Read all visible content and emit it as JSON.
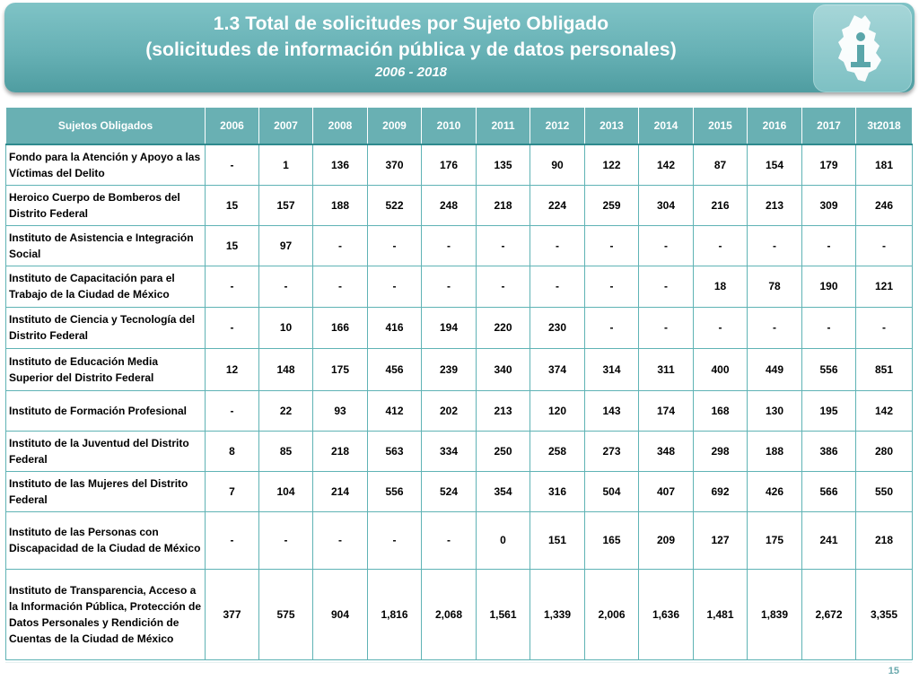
{
  "header": {
    "title_line1": "1.3 Total de solicitudes por Sujeto Obligado",
    "title_line2": "(solicitudes de información pública y de datos personales)",
    "years": "2006 - 2018"
  },
  "logo": {
    "icon": "cdmx-map-info-icon"
  },
  "table": {
    "col_headers": [
      "Sujetos Obligados",
      "2006",
      "2007",
      "2008",
      "2009",
      "2010",
      "2011",
      "2012",
      "2013",
      "2014",
      "2015",
      "2016",
      "2017",
      "3t2018"
    ],
    "rows": [
      {
        "name": "Fondo para la Atención y Apoyo a las Víctimas del Delito",
        "values": [
          "-",
          "1",
          "136",
          "370",
          "176",
          "135",
          "90",
          "122",
          "142",
          "87",
          "154",
          "179",
          "181"
        ]
      },
      {
        "name": "Heroico Cuerpo de Bomberos del Distrito Federal",
        "values": [
          "15",
          "157",
          "188",
          "522",
          "248",
          "218",
          "224",
          "259",
          "304",
          "216",
          "213",
          "309",
          "246"
        ]
      },
      {
        "name": "Instituto de Asistencia e Integración Social",
        "values": [
          "15",
          "97",
          "-",
          "-",
          "-",
          "-",
          "-",
          "-",
          "-",
          "-",
          "-",
          "-",
          "-"
        ]
      },
      {
        "name": "Instituto de Capacitación para el Trabajo de la Ciudad de México",
        "values": [
          "-",
          "-",
          "-",
          "-",
          "-",
          "-",
          "-",
          "-",
          "-",
          "18",
          "78",
          "190",
          "121"
        ]
      },
      {
        "name": "Instituto de Ciencia y Tecnología del Distrito Federal",
        "values": [
          "-",
          "10",
          "166",
          "416",
          "194",
          "220",
          "230",
          "-",
          "-",
          "-",
          "-",
          "-",
          "-"
        ]
      },
      {
        "name": "Instituto de Educación Media Superior del Distrito Federal",
        "values": [
          "12",
          "148",
          "175",
          "456",
          "239",
          "340",
          "374",
          "314",
          "311",
          "400",
          "449",
          "556",
          "851"
        ]
      },
      {
        "name": "Instituto de Formación Profesional",
        "values": [
          "-",
          "22",
          "93",
          "412",
          "202",
          "213",
          "120",
          "143",
          "174",
          "168",
          "130",
          "195",
          "142"
        ]
      },
      {
        "name": "Instituto de la Juventud del Distrito Federal",
        "values": [
          "8",
          "85",
          "218",
          "563",
          "334",
          "250",
          "258",
          "273",
          "348",
          "298",
          "188",
          "386",
          "280"
        ]
      },
      {
        "name": "Instituto de las Mujeres del Distrito Federal",
        "values": [
          "7",
          "104",
          "214",
          "556",
          "524",
          "354",
          "316",
          "504",
          "407",
          "692",
          "426",
          "566",
          "550"
        ]
      },
      {
        "name": "Instituto de las Personas con Discapacidad de la Ciudad de México",
        "values": [
          "-",
          "-",
          "-",
          "-",
          "-",
          "0",
          "151",
          "165",
          "209",
          "127",
          "175",
          "241",
          "218"
        ]
      },
      {
        "name": "Instituto de Transparencia, Acceso a la Información Pública, Protección de Datos Personales y Rendición de Cuentas de la Ciudad de México",
        "values": [
          "377",
          "575",
          "904",
          "1,816",
          "2,068",
          "1,561",
          "1,339",
          "2,006",
          "1,636",
          "1,481",
          "1,839",
          "2,672",
          "3,355"
        ]
      }
    ]
  },
  "footer": {
    "page_number": "15"
  },
  "colors": {
    "header_teal": "#67b1b5",
    "table_header": "#69b0b3",
    "grid_line": "#5fb3b5",
    "page_number": "#6aa9ad"
  }
}
